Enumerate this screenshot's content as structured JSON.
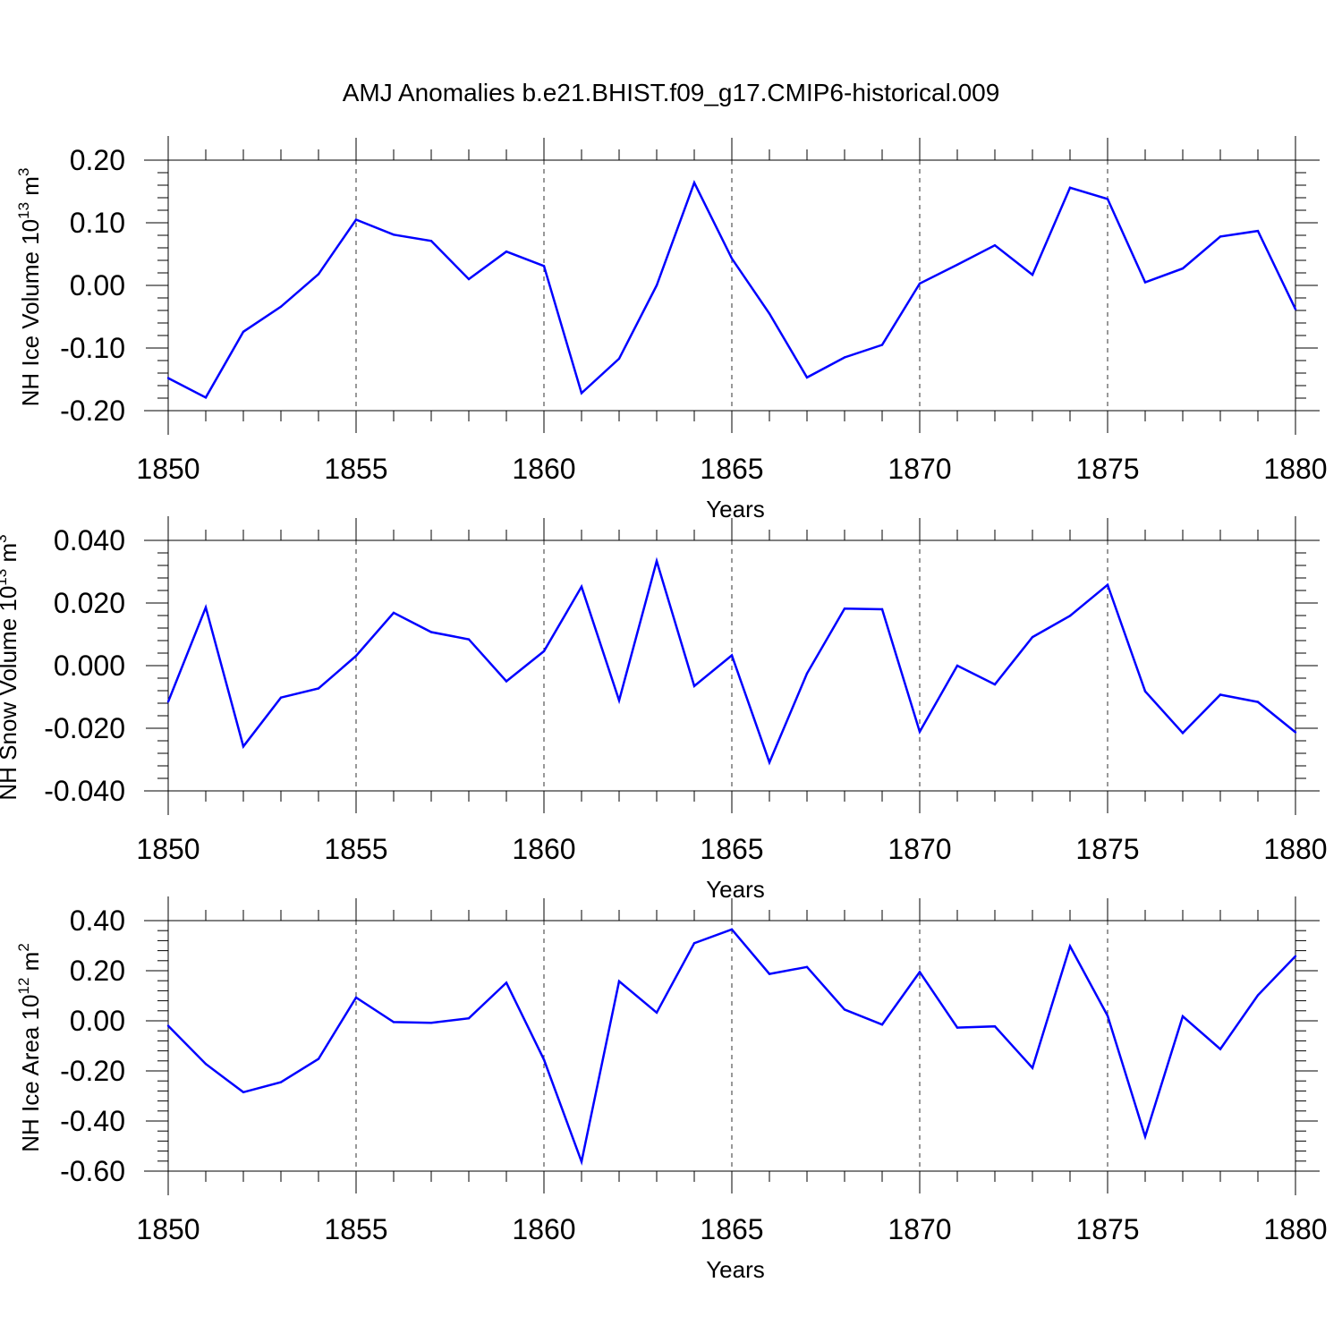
{
  "title": "AMJ Anomalies b.e21.BHIST.f09_g17.CMIP6-historical.009",
  "series_color": "#0000ff",
  "chart_data": [
    {
      "type": "line",
      "title": "AMJ Anomalies b.e21.BHIST.f09_g17.CMIP6-historical.009",
      "ylabel": "NH Ice Volume 10^13 m^3",
      "ylabel_base": "NH Ice Volume 10",
      "ylabel_exp": "13",
      "ylabel_unit": " m",
      "ylabel_unit_exp": "3",
      "xlabel": "Years",
      "xlim": [
        1850,
        1880
      ],
      "ylim": [
        -0.2,
        0.2
      ],
      "xticks": [
        1850,
        1855,
        1860,
        1865,
        1870,
        1875,
        1880
      ],
      "xtick_labels": [
        "1850",
        "1855",
        "1860",
        "1865",
        "1870",
        "1875",
        "1880"
      ],
      "yticks": [
        -0.2,
        -0.1,
        0.0,
        0.1,
        0.2
      ],
      "ytick_labels": [
        "-0.20",
        "-0.10",
        "0.00",
        "0.10",
        "0.20"
      ],
      "x": [
        1850,
        1851,
        1852,
        1853,
        1854,
        1855,
        1856,
        1857,
        1858,
        1859,
        1860,
        1861,
        1862,
        1863,
        1864,
        1865,
        1866,
        1867,
        1868,
        1869,
        1870,
        1871,
        1872,
        1873,
        1874,
        1875,
        1876,
        1877,
        1878,
        1879,
        1880
      ],
      "y": [
        -0.148,
        -0.179,
        -0.074,
        -0.034,
        0.018,
        0.105,
        0.081,
        0.071,
        0.01,
        0.054,
        0.031,
        -0.172,
        -0.117,
        0.0,
        0.164,
        0.043,
        -0.045,
        -0.147,
        -0.115,
        -0.095,
        0.003,
        0.033,
        0.064,
        0.017,
        0.156,
        0.138,
        0.005,
        0.027,
        0.078,
        0.087,
        -0.038
      ]
    },
    {
      "type": "line",
      "ylabel": "NH Snow Volume 10^13 m^3",
      "ylabel_base": "NH Snow Volume 10",
      "ylabel_exp": "13",
      "ylabel_unit": " m",
      "ylabel_unit_exp": "3",
      "xlabel": "Years",
      "xlim": [
        1850,
        1880
      ],
      "ylim": [
        -0.04,
        0.04
      ],
      "xticks": [
        1850,
        1855,
        1860,
        1865,
        1870,
        1875,
        1880
      ],
      "xtick_labels": [
        "1850",
        "1855",
        "1860",
        "1865",
        "1870",
        "1875",
        "1880"
      ],
      "yticks": [
        -0.04,
        -0.02,
        0.0,
        0.02,
        0.04
      ],
      "ytick_labels": [
        "-0.040",
        "-0.020",
        "0.000",
        "0.020",
        "0.040"
      ],
      "x": [
        1850,
        1851,
        1852,
        1853,
        1854,
        1855,
        1856,
        1857,
        1858,
        1859,
        1860,
        1861,
        1862,
        1863,
        1864,
        1865,
        1866,
        1867,
        1868,
        1869,
        1870,
        1871,
        1872,
        1873,
        1874,
        1875,
        1876,
        1877,
        1878,
        1879,
        1880
      ],
      "y": [
        -0.0115,
        0.0186,
        -0.0258,
        -0.0102,
        -0.0073,
        0.0031,
        0.0169,
        0.0107,
        0.0084,
        -0.005,
        0.0046,
        0.0252,
        -0.0111,
        0.0334,
        -0.0065,
        0.0033,
        -0.0309,
        -0.0025,
        0.0182,
        0.018,
        -0.0211,
        0.0,
        -0.006,
        0.0091,
        0.0159,
        0.0258,
        -0.0082,
        -0.0215,
        -0.0093,
        -0.0116,
        -0.0213
      ]
    },
    {
      "type": "line",
      "ylabel": "NH Ice Area 10^12 m^2",
      "ylabel_base": "NH Ice Area 10",
      "ylabel_exp": "12",
      "ylabel_unit": " m",
      "ylabel_unit_exp": "2",
      "xlabel": "Years",
      "xlim": [
        1850,
        1880
      ],
      "ylim": [
        -0.6,
        0.4
      ],
      "xticks": [
        1850,
        1855,
        1860,
        1865,
        1870,
        1875,
        1880
      ],
      "xtick_labels": [
        "1850",
        "1855",
        "1860",
        "1865",
        "1870",
        "1875",
        "1880"
      ],
      "yticks": [
        -0.6,
        -0.4,
        -0.2,
        0.0,
        0.2,
        0.4
      ],
      "ytick_labels": [
        "-0.60",
        "-0.40",
        "-0.20",
        "0.00",
        "0.20",
        "0.40"
      ],
      "x": [
        1850,
        1851,
        1852,
        1853,
        1854,
        1855,
        1856,
        1857,
        1858,
        1859,
        1860,
        1861,
        1862,
        1863,
        1864,
        1865,
        1866,
        1867,
        1868,
        1869,
        1870,
        1871,
        1872,
        1873,
        1874,
        1875,
        1876,
        1877,
        1878,
        1879,
        1880
      ],
      "y": [
        -0.02,
        -0.172,
        -0.285,
        -0.245,
        -0.152,
        0.093,
        -0.005,
        -0.008,
        0.01,
        0.152,
        -0.155,
        -0.562,
        0.158,
        0.033,
        0.31,
        0.365,
        0.187,
        0.215,
        0.045,
        -0.015,
        0.195,
        -0.027,
        -0.022,
        -0.188,
        0.298,
        0.02,
        -0.462,
        0.018,
        -0.113,
        0.102,
        0.258
      ]
    }
  ]
}
